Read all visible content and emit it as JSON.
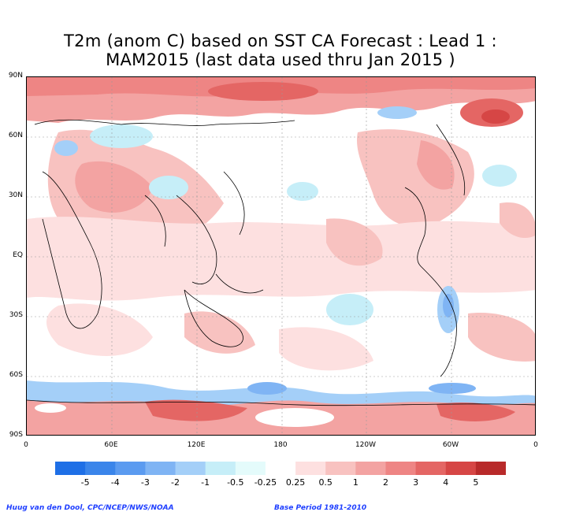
{
  "title_line1": "T2m (anom C) based on SST CA Forecast : Lead 1 :",
  "title_line2": "MAM2015 (last data used thru Jan 2015 )",
  "lat_labels": [
    "90N",
    "60N",
    "30N",
    "EQ",
    "30S",
    "60S",
    "90S"
  ],
  "lon_labels": [
    "0",
    "60E",
    "120E",
    "180",
    "120W",
    "60W",
    "0"
  ],
  "colorbar": {
    "labels": [
      "-5",
      "-4",
      "-3",
      "-2",
      "-1",
      "-0.5",
      "-0.25",
      "0.25",
      "0.5",
      "1",
      "2",
      "3",
      "4",
      "5"
    ],
    "colors": [
      "#1e6fe6",
      "#3a85ea",
      "#5b9bf0",
      "#7fb4f4",
      "#a4cff8",
      "#c6eef8",
      "#e4fbfb",
      "#ffffff",
      "#fde0e0",
      "#f8c2c0",
      "#f3a3a2",
      "#ee8584",
      "#e46664",
      "#d64645",
      "#b82a2a"
    ]
  },
  "credit_left": "Huug van den Dool, CPC/NCEP/NWS/NOAA",
  "credit_right": "Base Period 1981-2010"
}
